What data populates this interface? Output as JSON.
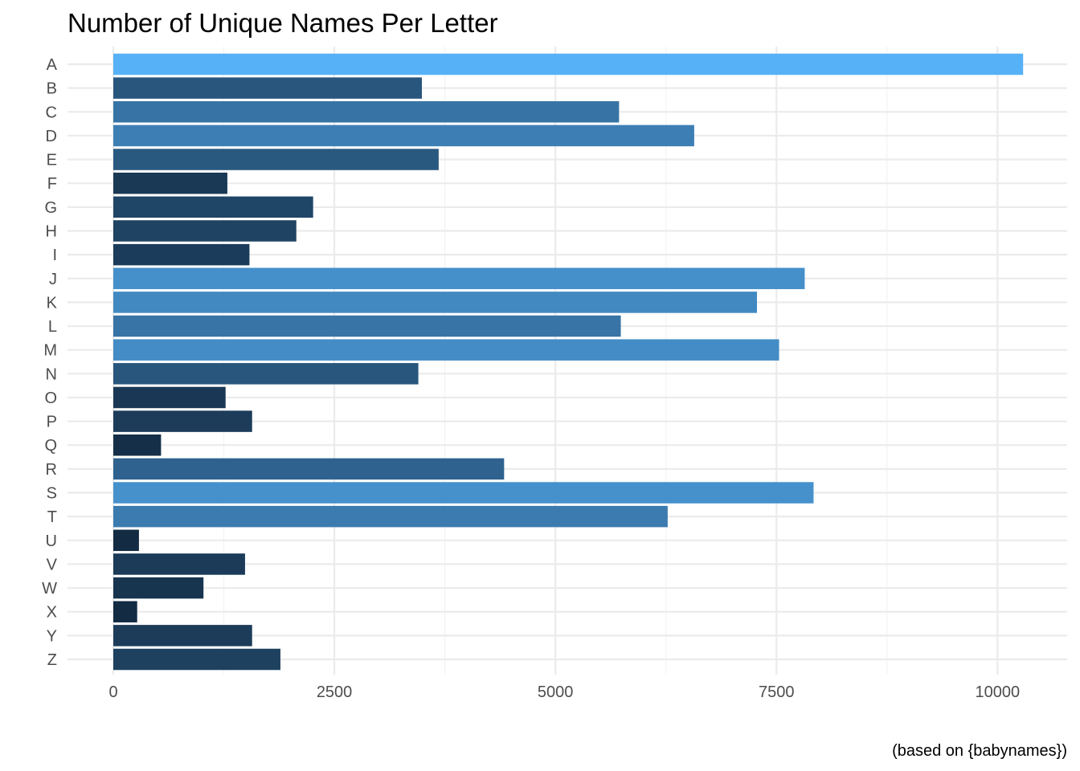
{
  "chart_data": {
    "type": "bar",
    "orientation": "horizontal",
    "title": "Number of Unique Names Per Letter",
    "caption": "(based on {babynames})",
    "xlabel": "",
    "ylabel": "",
    "xlim": [
      0,
      10800
    ],
    "x_ticks": [
      0,
      2500,
      5000,
      7500,
      10000
    ],
    "x_tick_labels": [
      "0",
      "2500",
      "5000",
      "7500",
      "10000"
    ],
    "grid": true,
    "legend": "none",
    "color_scale": {
      "low": "#132B43",
      "high": "#56B1F7"
    },
    "categories": [
      "A",
      "B",
      "C",
      "D",
      "E",
      "F",
      "G",
      "H",
      "I",
      "J",
      "K",
      "L",
      "M",
      "N",
      "O",
      "P",
      "Q",
      "R",
      "S",
      "T",
      "U",
      "V",
      "W",
      "X",
      "Y",
      "Z"
    ],
    "values": [
      10290,
      3490,
      5720,
      6570,
      3680,
      1290,
      2260,
      2070,
      1540,
      7820,
      7280,
      5740,
      7530,
      3450,
      1270,
      1570,
      540,
      4420,
      7920,
      6270,
      290,
      1490,
      1020,
      270,
      1570,
      1890
    ]
  }
}
